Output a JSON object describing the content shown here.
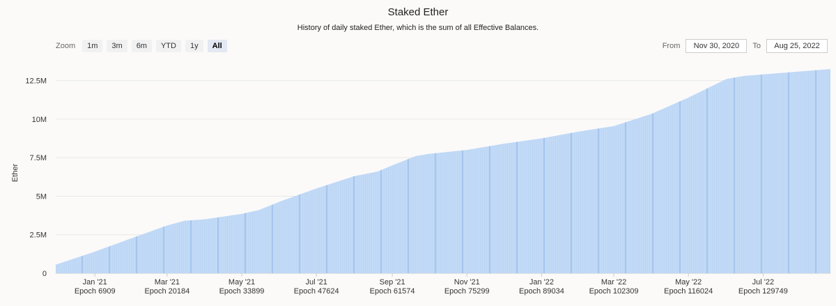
{
  "header": {
    "title": "Staked Ether",
    "subtitle": "History of daily staked Ether, which is the sum of all Effective Balances."
  },
  "zoom": {
    "label": "Zoom",
    "buttons": [
      {
        "label": "1m",
        "active": false
      },
      {
        "label": "3m",
        "active": false
      },
      {
        "label": "6m",
        "active": false
      },
      {
        "label": "YTD",
        "active": false
      },
      {
        "label": "1y",
        "active": false
      },
      {
        "label": "All",
        "active": true
      }
    ]
  },
  "range": {
    "from_label": "From",
    "from_value": "Nov 30, 2020",
    "to_label": "To",
    "to_value": "Aug 25, 2022"
  },
  "colors": {
    "bar_fill": "#bcd6f5",
    "bar_edge": "#8fb6e6",
    "gridline": "#e8e8e8"
  },
  "chart_data": {
    "type": "area",
    "ylabel": "Ether",
    "ylim": [
      0,
      13750000
    ],
    "y_ticks": [
      {
        "value": 0,
        "label": "0"
      },
      {
        "value": 2500000,
        "label": "2.5M"
      },
      {
        "value": 5000000,
        "label": "5M"
      },
      {
        "value": 7500000,
        "label": "7.5M"
      },
      {
        "value": 10000000,
        "label": "10M"
      },
      {
        "value": 12500000,
        "label": "12.5M"
      }
    ],
    "xlim": [
      "2020-11-30",
      "2022-08-25"
    ],
    "x_ticks": [
      {
        "date": "2021-01-01",
        "label": "Jan '21",
        "sublabel": "Epoch 6909"
      },
      {
        "date": "2021-03-01",
        "label": "Mar '21",
        "sublabel": "Epoch 20184"
      },
      {
        "date": "2021-05-01",
        "label": "May '21",
        "sublabel": "Epoch 33899"
      },
      {
        "date": "2021-07-01",
        "label": "Jul '21",
        "sublabel": "Epoch 47624"
      },
      {
        "date": "2021-09-01",
        "label": "Sep '21",
        "sublabel": "Epoch 61574"
      },
      {
        "date": "2021-11-01",
        "label": "Nov '21",
        "sublabel": "Epoch 75299"
      },
      {
        "date": "2022-01-01",
        "label": "Jan '22",
        "sublabel": "Epoch 89034"
      },
      {
        "date": "2022-03-01",
        "label": "Mar '22",
        "sublabel": "Epoch 102309"
      },
      {
        "date": "2022-05-01",
        "label": "May '22",
        "sublabel": "Epoch 116024"
      },
      {
        "date": "2022-07-01",
        "label": "Jul '22",
        "sublabel": "Epoch 129749"
      }
    ],
    "series": [
      {
        "points": [
          [
            "2020-11-30",
            550000
          ],
          [
            "2021-01-01",
            1400000
          ],
          [
            "2021-02-01",
            2300000
          ],
          [
            "2021-03-01",
            3100000
          ],
          [
            "2021-03-15",
            3400000
          ],
          [
            "2021-04-01",
            3500000
          ],
          [
            "2021-05-01",
            3850000
          ],
          [
            "2021-05-15",
            4100000
          ],
          [
            "2021-06-01",
            4650000
          ],
          [
            "2021-07-01",
            5500000
          ],
          [
            "2021-08-01",
            6300000
          ],
          [
            "2021-08-20",
            6600000
          ],
          [
            "2021-09-01",
            7000000
          ],
          [
            "2021-09-20",
            7600000
          ],
          [
            "2021-10-01",
            7750000
          ],
          [
            "2021-11-01",
            8000000
          ],
          [
            "2021-12-01",
            8400000
          ],
          [
            "2022-01-01",
            8750000
          ],
          [
            "2022-02-01",
            9200000
          ],
          [
            "2022-03-01",
            9550000
          ],
          [
            "2022-04-01",
            10350000
          ],
          [
            "2022-05-01",
            11400000
          ],
          [
            "2022-06-01",
            12600000
          ],
          [
            "2022-06-15",
            12800000
          ],
          [
            "2022-07-01",
            12900000
          ],
          [
            "2022-08-01",
            13100000
          ],
          [
            "2022-08-25",
            13250000
          ]
        ]
      }
    ]
  }
}
